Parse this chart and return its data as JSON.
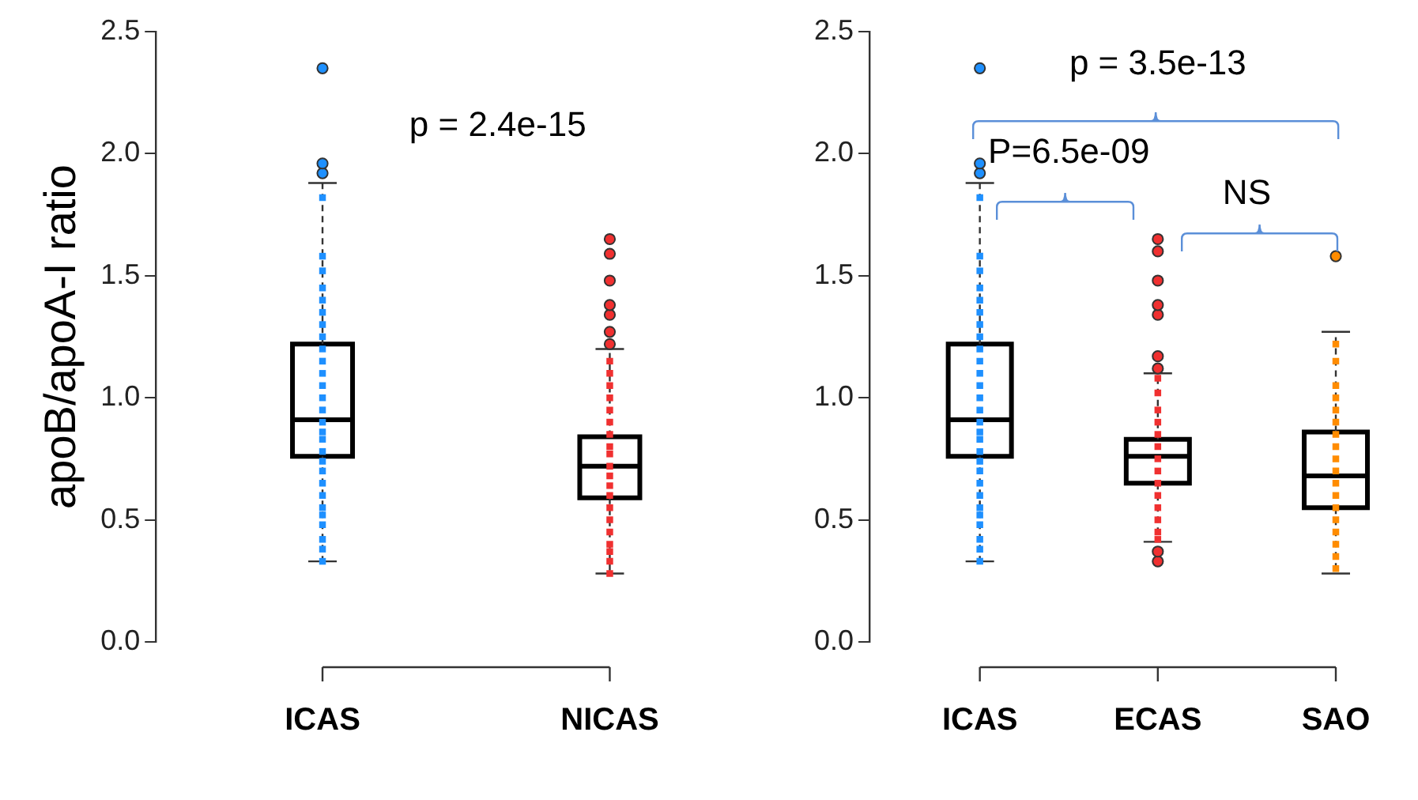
{
  "chart_data": [
    {
      "type": "box",
      "ylabel": "apoB/apoA-I ratio",
      "categories": [
        "ICAS",
        "NICAS"
      ],
      "ylim": [
        0,
        2.5
      ],
      "yticks": [
        {
          "value": 0,
          "label": "0.0"
        },
        {
          "value": 0.5,
          "label": "0.5"
        },
        {
          "value": 1,
          "label": "1.0"
        },
        {
          "value": 1.5,
          "label": "1.5"
        },
        {
          "value": 2,
          "label": "2.0"
        },
        {
          "value": 2.5,
          "label": "2.5"
        }
      ],
      "annotations": [
        "p = 2.4e-15"
      ],
      "series": [
        {
          "type": "scatter",
          "marker": "square",
          "color": "#1e90ff",
          "x": [
            "ICAS",
            "ICAS",
            "ICAS",
            "ICAS",
            "ICAS",
            "ICAS",
            "ICAS",
            "ICAS",
            "ICAS",
            "ICAS",
            "ICAS",
            "ICAS",
            "ICAS",
            "ICAS",
            "ICAS",
            "ICAS",
            "ICAS",
            "ICAS",
            "ICAS",
            "ICAS",
            "ICAS",
            "ICAS",
            "ICAS",
            "ICAS",
            "ICAS",
            "ICAS",
            "ICAS",
            "ICAS"
          ],
          "values": [
            0.33,
            0.38,
            0.42,
            0.48,
            0.52,
            0.55,
            0.6,
            0.65,
            0.7,
            0.74,
            0.78,
            0.83,
            0.86,
            0.9,
            0.95,
            1.0,
            1.05,
            1.1,
            1.15,
            1.2,
            1.25,
            1.3,
            1.35,
            1.4,
            1.45,
            1.52,
            1.58,
            1.82
          ]
        },
        {
          "type": "scatter",
          "marker": "square",
          "color": "#f03030",
          "x": [
            "NICAS",
            "NICAS",
            "NICAS",
            "NICAS",
            "NICAS",
            "NICAS",
            "NICAS",
            "NICAS",
            "NICAS",
            "NICAS",
            "NICAS",
            "NICAS",
            "NICAS",
            "NICAS",
            "NICAS",
            "NICAS",
            "NICAS",
            "NICAS",
            "NICAS",
            "NICAS"
          ],
          "values": [
            0.28,
            0.33,
            0.37,
            0.4,
            0.45,
            0.5,
            0.55,
            0.6,
            0.64,
            0.68,
            0.72,
            0.77,
            0.8,
            0.85,
            0.9,
            0.95,
            1.0,
            1.05,
            1.1,
            1.15
          ]
        },
        {
          "type": "scatter",
          "marker": "circle",
          "color": "#1e90ff",
          "x": [
            "ICAS",
            "ICAS",
            "ICAS"
          ],
          "values": [
            1.92,
            1.96,
            2.35
          ]
        },
        {
          "type": "scatter",
          "marker": "circle",
          "color": "#f03030",
          "x": [
            "NICAS",
            "NICAS",
            "NICAS",
            "NICAS",
            "NICAS",
            "NICAS",
            "NICAS"
          ],
          "values": [
            1.22,
            1.27,
            1.34,
            1.38,
            1.48,
            1.59,
            1.65
          ]
        },
        {
          "type": "box",
          "color": "#000000",
          "boxes": [
            {
              "low": 0.33,
              "q1": 0.76,
              "median": 0.91,
              "q3": 1.22,
              "high": 1.88
            },
            {
              "low": 0.28,
              "q1": 0.59,
              "median": 0.72,
              "q3": 0.84,
              "high": 1.2
            }
          ]
        }
      ]
    },
    {
      "type": "box",
      "categories": [
        "ICAS",
        "ECAS",
        "SAO"
      ],
      "ylim": [
        0,
        2.5
      ],
      "yticks": [
        {
          "value": 0,
          "label": "0.0"
        },
        {
          "value": 0.5,
          "label": "0.5"
        },
        {
          "value": 1,
          "label": "1.0"
        },
        {
          "value": 1.5,
          "label": "1.5"
        },
        {
          "value": 2,
          "label": "2.0"
        },
        {
          "value": 2.5,
          "label": "2.5"
        }
      ],
      "annotations": [
        "p = 3.5e-13",
        "P=6.5e-09",
        "NS"
      ],
      "series": [
        {
          "type": "scatter",
          "marker": "square",
          "color": "#1e90ff",
          "x": [
            "ICAS",
            "ICAS",
            "ICAS",
            "ICAS",
            "ICAS",
            "ICAS",
            "ICAS",
            "ICAS",
            "ICAS",
            "ICAS",
            "ICAS",
            "ICAS",
            "ICAS",
            "ICAS",
            "ICAS",
            "ICAS",
            "ICAS",
            "ICAS",
            "ICAS",
            "ICAS",
            "ICAS",
            "ICAS",
            "ICAS",
            "ICAS",
            "ICAS",
            "ICAS",
            "ICAS",
            "ICAS"
          ],
          "values": [
            0.33,
            0.38,
            0.42,
            0.48,
            0.52,
            0.55,
            0.6,
            0.65,
            0.7,
            0.74,
            0.78,
            0.83,
            0.86,
            0.9,
            0.95,
            1.0,
            1.05,
            1.1,
            1.15,
            1.2,
            1.25,
            1.3,
            1.35,
            1.4,
            1.45,
            1.52,
            1.58,
            1.82
          ]
        },
        {
          "type": "scatter",
          "marker": "square",
          "color": "#f03030",
          "x": [
            "ECAS",
            "ECAS",
            "ECAS",
            "ECAS",
            "ECAS",
            "ECAS",
            "ECAS",
            "ECAS",
            "ECAS",
            "ECAS",
            "ECAS",
            "ECAS",
            "ECAS",
            "ECAS"
          ],
          "values": [
            0.42,
            0.45,
            0.5,
            0.55,
            0.6,
            0.65,
            0.7,
            0.75,
            0.8,
            0.85,
            0.9,
            0.95,
            1.02,
            1.08
          ]
        },
        {
          "type": "scatter",
          "marker": "square",
          "color": "#ff8c00",
          "x": [
            "SAO",
            "SAO",
            "SAO",
            "SAO",
            "SAO",
            "SAO",
            "SAO",
            "SAO",
            "SAO",
            "SAO",
            "SAO",
            "SAO",
            "SAO",
            "SAO",
            "SAO",
            "SAO",
            "SAO",
            "SAO"
          ],
          "values": [
            0.3,
            0.35,
            0.4,
            0.45,
            0.5,
            0.55,
            0.6,
            0.65,
            0.7,
            0.75,
            0.8,
            0.85,
            0.9,
            0.95,
            1.0,
            1.05,
            1.15,
            1.22
          ]
        },
        {
          "type": "scatter",
          "marker": "circle",
          "color": "#1e90ff",
          "x": [
            "ICAS",
            "ICAS",
            "ICAS"
          ],
          "values": [
            1.92,
            1.96,
            2.35
          ]
        },
        {
          "type": "scatter",
          "marker": "circle",
          "color": "#f03030",
          "x": [
            "ECAS",
            "ECAS",
            "ECAS",
            "ECAS",
            "ECAS",
            "ECAS",
            "ECAS",
            "ECAS",
            "ECAS"
          ],
          "values": [
            0.33,
            0.37,
            1.12,
            1.17,
            1.34,
            1.38,
            1.48,
            1.6,
            1.65
          ]
        },
        {
          "type": "scatter",
          "marker": "circle",
          "color": "#ff8c00",
          "x": [
            "SAO"
          ],
          "values": [
            1.58
          ]
        },
        {
          "type": "box",
          "color": "#000000",
          "boxes": [
            {
              "low": 0.33,
              "q1": 0.76,
              "median": 0.91,
              "q3": 1.22,
              "high": 1.88
            },
            {
              "low": 0.41,
              "q1": 0.65,
              "median": 0.76,
              "q3": 0.83,
              "high": 1.1
            },
            {
              "low": 0.28,
              "q1": 0.55,
              "median": 0.68,
              "q3": 0.86,
              "high": 1.27
            }
          ]
        }
      ]
    }
  ]
}
